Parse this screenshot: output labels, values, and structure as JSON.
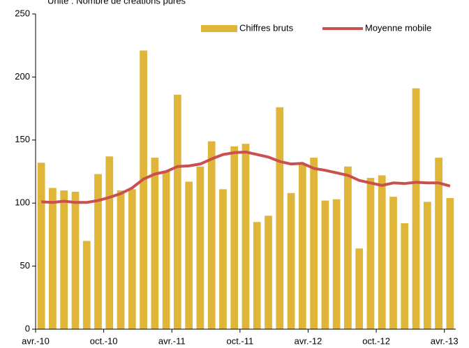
{
  "chart_data": {
    "type": "bar",
    "subtitle": "Unité : Nombre de créations pures",
    "categories": [
      "avr.-10",
      null,
      null,
      null,
      null,
      null,
      "oct.-10",
      null,
      null,
      null,
      null,
      null,
      "avr.-11",
      null,
      null,
      null,
      null,
      null,
      "oct.-11",
      null,
      null,
      null,
      null,
      null,
      "avr.-12",
      null,
      null,
      null,
      null,
      null,
      "oct.-12",
      null,
      null,
      null,
      null,
      null,
      "avr.-13"
    ],
    "series": [
      {
        "name": "Chiffres bruts",
        "type": "bar",
        "color": "#dfb53a",
        "values": [
          132,
          112,
          110,
          109,
          70,
          123,
          137,
          110,
          111,
          221,
          136,
          125,
          186,
          117,
          129,
          149,
          111,
          145,
          147,
          85,
          90,
          176,
          108,
          131,
          136,
          102,
          103,
          129,
          64,
          120,
          122,
          105,
          84,
          191,
          101,
          136,
          104
        ]
      },
      {
        "name": "Moyenne mobile",
        "type": "line",
        "color": "#c9504f",
        "values": [
          101,
          100.5,
          101.5,
          100.5,
          100.5,
          102,
          104.5,
          107.5,
          112,
          119,
          123,
          125,
          129,
          129.5,
          131,
          135,
          138.5,
          140,
          140.5,
          138.5,
          136.5,
          133,
          131,
          131.5,
          127.5,
          126,
          124,
          122,
          118,
          116,
          114,
          116,
          115.5,
          116.5,
          116,
          116,
          113.5
        ]
      }
    ],
    "ylim": [
      0,
      250
    ],
    "yticks": [
      0,
      50,
      100,
      150,
      200,
      250
    ],
    "grid": false,
    "legend": "top-right"
  }
}
